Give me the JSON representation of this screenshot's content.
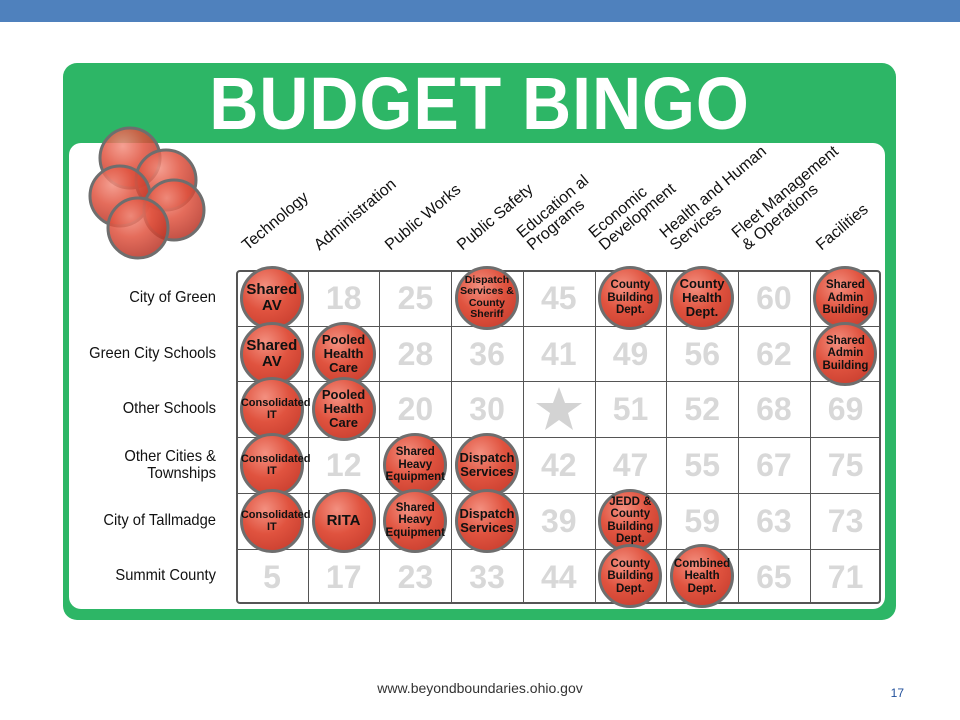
{
  "title": "BUDGET BINGO",
  "columns": [
    "Technology",
    "Administration",
    "Public Works",
    "Public Safety",
    "Education al Programs",
    "Economic Development",
    "Health and Human Services",
    "Fleet Management & Operations",
    "Facilities"
  ],
  "rows": [
    "City of Green",
    "Green City Schools",
    "Other Schools",
    "Other Cities & Townships",
    "City of Tallmadge",
    "Summit County"
  ],
  "cells": [
    [
      "",
      "18",
      "25",
      "",
      "45",
      "",
      "",
      "60",
      ""
    ],
    [
      "",
      "",
      "28",
      "36",
      "41",
      "49",
      "56",
      "62",
      ""
    ],
    [
      "",
      "",
      "20",
      "30",
      "",
      "51",
      "52",
      "68",
      "69"
    ],
    [
      "",
      "12",
      "",
      "",
      "42",
      "47",
      "55",
      "67",
      "75"
    ],
    [
      "",
      "",
      "",
      "",
      "39",
      "",
      "59",
      "63",
      "73"
    ],
    [
      "5",
      "17",
      "23",
      "33",
      "44",
      "",
      "",
      "65",
      "71"
    ]
  ],
  "chips": [
    {
      "row": 0,
      "col": 0,
      "text": "Shared AV"
    },
    {
      "row": 0,
      "col": 3,
      "text": "Dispatch Services & County Sheriff"
    },
    {
      "row": 0,
      "col": 5,
      "text": "County Building Dept."
    },
    {
      "row": 0,
      "col": 6,
      "text": "County Health Dept."
    },
    {
      "row": 0,
      "col": 8,
      "text": "Shared Admin Building"
    },
    {
      "row": 1,
      "col": 0,
      "text": "Shared AV"
    },
    {
      "row": 1,
      "col": 1,
      "text": "Pooled Health Care"
    },
    {
      "row": 1,
      "col": 8,
      "text": "Shared Admin Building"
    },
    {
      "row": 2,
      "col": 0,
      "text": "Consolidated IT"
    },
    {
      "row": 2,
      "col": 1,
      "text": "Pooled Health Care"
    },
    {
      "row": 3,
      "col": 0,
      "text": "Consolidated IT"
    },
    {
      "row": 3,
      "col": 2,
      "text": "Shared Heavy Equipment"
    },
    {
      "row": 3,
      "col": 3,
      "text": "Dispatch Services"
    },
    {
      "row": 4,
      "col": 0,
      "text": "Consolidated IT"
    },
    {
      "row": 4,
      "col": 1,
      "text": "RITA"
    },
    {
      "row": 4,
      "col": 2,
      "text": "Shared Heavy Equipment"
    },
    {
      "row": 4,
      "col": 3,
      "text": "Dispatch Services"
    },
    {
      "row": 4,
      "col": 5,
      "text": "JEDD & County Building Dept."
    },
    {
      "row": 5,
      "col": 5,
      "text": "County Building Dept."
    },
    {
      "row": 5,
      "col": 6,
      "text": "Combined Health Dept."
    }
  ],
  "free_space": {
    "row": 2,
    "col": 4,
    "icon": "star-icon"
  },
  "colors": {
    "green": "#2db666",
    "chip": "#e0533f",
    "header_bar": "#4f81bd"
  },
  "footer": {
    "url": "www.beyondboundaries.ohio.gov",
    "page": "17"
  }
}
